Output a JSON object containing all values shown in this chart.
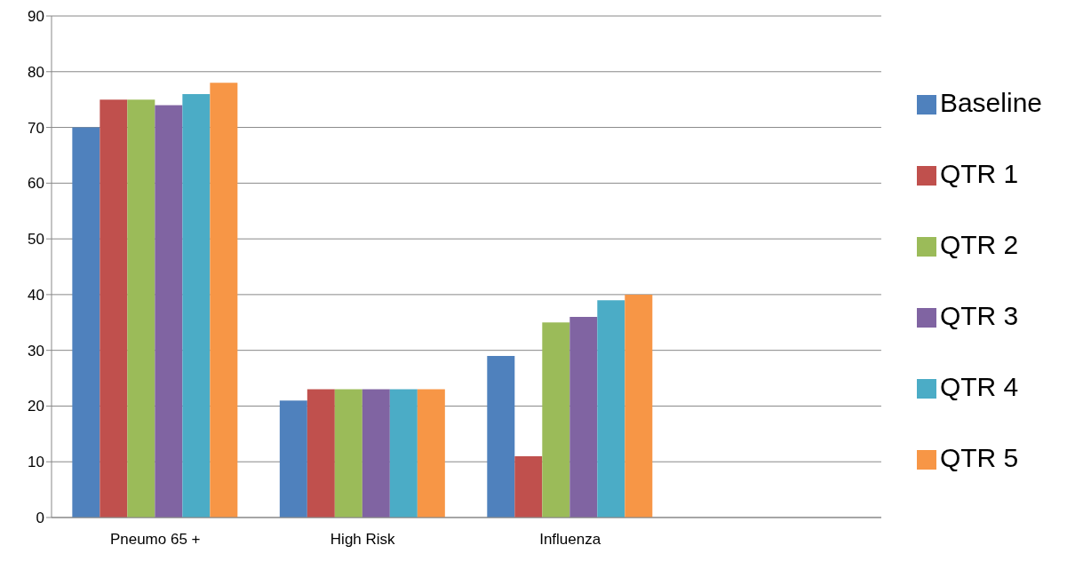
{
  "chart_data": {
    "type": "bar",
    "categories": [
      "Pneumo 65 +",
      "High Risk",
      "Influenza",
      null
    ],
    "series": [
      {
        "name": "Baseline",
        "color": "#4f81bd",
        "values": [
          70,
          21,
          29,
          null
        ]
      },
      {
        "name": "QTR 1",
        "color": "#c0504d",
        "values": [
          75,
          23,
          11,
          null
        ]
      },
      {
        "name": "QTR 2",
        "color": "#9bbb59",
        "values": [
          75,
          23,
          35,
          null
        ]
      },
      {
        "name": "QTR 3",
        "color": "#8064a2",
        "values": [
          74,
          23,
          36,
          null
        ]
      },
      {
        "name": "QTR 4",
        "color": "#4bacc6",
        "values": [
          76,
          23,
          39,
          null
        ]
      },
      {
        "name": "QTR 5",
        "color": "#f79646",
        "values": [
          78,
          23,
          40,
          null
        ]
      }
    ],
    "ylim": [
      0,
      90
    ],
    "yticks": [
      0,
      10,
      20,
      30,
      40,
      50,
      60,
      70,
      80,
      90
    ],
    "grid": "y",
    "legend": "right"
  }
}
